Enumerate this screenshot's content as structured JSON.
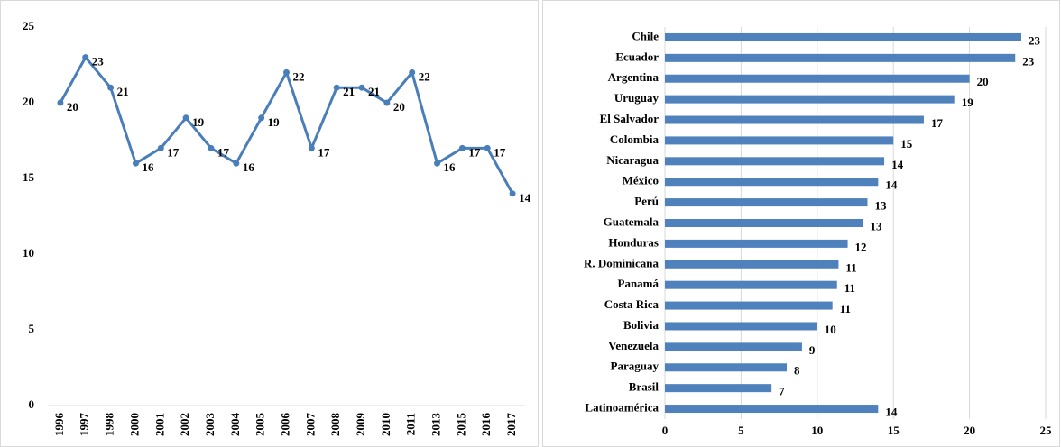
{
  "chart_data": [
    {
      "type": "line",
      "categories": [
        "1996",
        "1997",
        "1998",
        "2000",
        "2001",
        "2002",
        "2003",
        "2004",
        "2005",
        "2006",
        "2007",
        "2008",
        "2009",
        "2010",
        "2011",
        "2013",
        "2015",
        "2016",
        "2017"
      ],
      "values": [
        20,
        23,
        21,
        16,
        17,
        19,
        17,
        16,
        19,
        22,
        17,
        21,
        21,
        20,
        22,
        16,
        17,
        17,
        14
      ],
      "color": "#4a7ebb",
      "ylim": [
        0,
        25
      ],
      "yticks": [
        0,
        5,
        10,
        15,
        20,
        25
      ],
      "grid": false
    },
    {
      "type": "barh",
      "categories": [
        "Chile",
        "Ecuador",
        "Argentina",
        "Uruguay",
        "El Salvador",
        "Colombia",
        "Nicaragua",
        "México",
        "Perú",
        "Guatemala",
        "Honduras",
        "R. Dominicana",
        "Panamá",
        "Costa Rica",
        "Bolivia",
        "Venezuela",
        "Paraguay",
        "Brasil",
        "Latinoamérica"
      ],
      "values": [
        23.4,
        23,
        20,
        19,
        17,
        15,
        14.4,
        14,
        13.3,
        13,
        12,
        11.4,
        11.3,
        11,
        10,
        9,
        8,
        7,
        14
      ],
      "value_labels": [
        "23",
        "23",
        "20",
        "19",
        "17",
        "15",
        "14",
        "14",
        "13",
        "13",
        "12",
        "11",
        "11",
        "11",
        "10",
        "9",
        "8",
        "7",
        "14"
      ],
      "color": "#4f81bd",
      "xlim": [
        0,
        25
      ],
      "xticks": [
        0,
        5,
        10,
        15,
        20,
        25
      ],
      "grid": true
    }
  ]
}
